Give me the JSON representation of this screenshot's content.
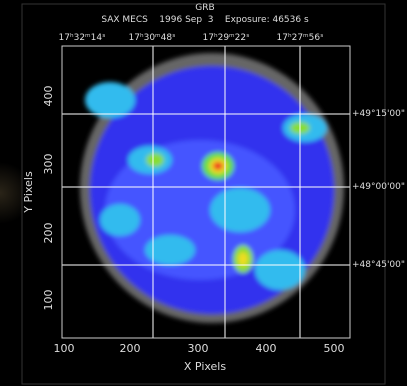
{
  "header": {
    "title": "GRB",
    "subtitle": "SAX MECS    1996 Sep  3    Exposure: 46536 s"
  },
  "x_axis": {
    "label": "X Pixels",
    "ticks": [
      "100",
      "200",
      "300",
      "400",
      "500"
    ]
  },
  "y_axis": {
    "label": "Y Pixels",
    "ticks": [
      "100",
      "200",
      "300",
      "400"
    ]
  },
  "ra_labels": [
    "17ʰ32ᵐ14ˢ",
    "17ʰ30ᵐ48ˢ",
    "17ʰ29ᵐ22ˢ",
    "17ʰ27ᵐ56ˢ"
  ],
  "dec_labels": [
    "+49°15'00\"",
    "+49°00'00\"",
    "+48°45'00\""
  ]
}
